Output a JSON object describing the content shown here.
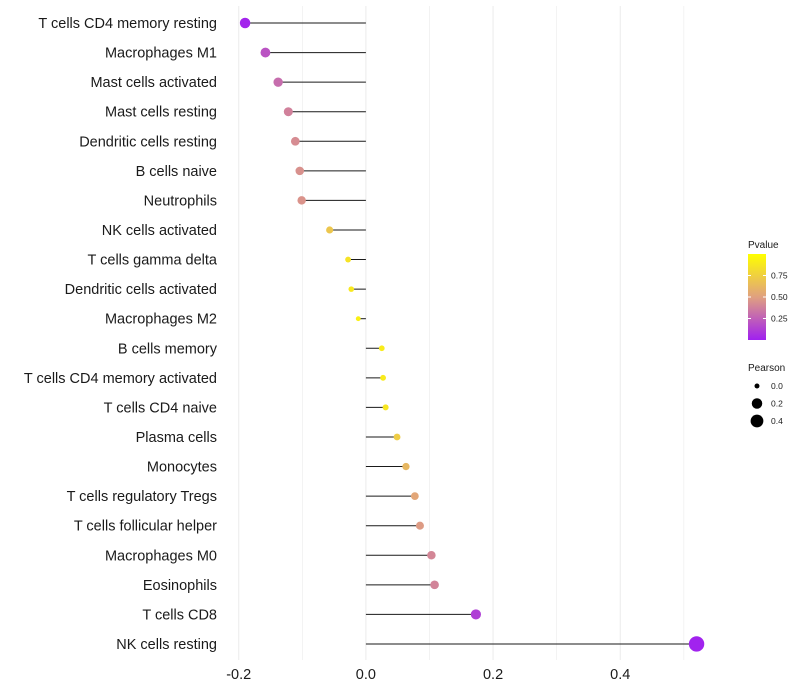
{
  "chart_data": {
    "type": "lollipop",
    "categories": [
      "T cells CD4 memory resting",
      "Macrophages M1",
      "Mast cells activated",
      "Mast cells resting",
      "Dendritic cells resting",
      "B cells naive",
      "Neutrophils",
      "NK cells activated",
      "T cells gamma delta",
      "Dendritic cells activated",
      "Macrophages M2",
      "B cells memory",
      "T cells CD4 memory activated",
      "T cells CD4 naive",
      "Plasma cells",
      "Monocytes",
      "T cells regulatory  Tregs",
      "T cells follicular helper",
      "Macrophages M0",
      "Eosinophils",
      "T cells CD8",
      "NK cells resting"
    ],
    "correlation": [
      -0.19,
      -0.158,
      -0.138,
      -0.122,
      -0.111,
      -0.104,
      -0.101,
      -0.057,
      -0.028,
      -0.023,
      -0.012,
      0.025,
      0.027,
      0.031,
      0.049,
      0.063,
      0.077,
      0.085,
      0.103,
      0.108,
      0.173,
      0.52
    ],
    "pvalue": [
      0.02,
      0.2,
      0.3,
      0.38,
      0.42,
      0.44,
      0.45,
      0.7,
      0.85,
      0.88,
      0.92,
      0.9,
      0.89,
      0.87,
      0.73,
      0.62,
      0.53,
      0.48,
      0.4,
      0.39,
      0.12,
      0.01
    ],
    "pearson_size": [
      0.19,
      0.158,
      0.138,
      0.122,
      0.111,
      0.104,
      0.101,
      0.057,
      0.028,
      0.023,
      0.012,
      0.025,
      0.027,
      0.031,
      0.049,
      0.063,
      0.077,
      0.085,
      0.103,
      0.108,
      0.173,
      0.52
    ],
    "xlim": [
      -0.22,
      0.56
    ],
    "x_ticks": [
      -0.2,
      0.0,
      0.2,
      0.4
    ],
    "x_tick_labels": [
      "-0.2",
      "0.0",
      "0.2",
      "0.4"
    ],
    "xlabel": "",
    "ylabel": "",
    "grid": true,
    "legend_pvalue": {
      "title": "Pvalue",
      "ticks": [
        0.75,
        0.5,
        0.25
      ],
      "tick_labels": [
        "0.75",
        "0.50",
        "0.25"
      ],
      "range": [
        0.0,
        1.0
      ],
      "color_low": "#a020f0",
      "color_mid": "#e0a080",
      "color_high": "#ffff00"
    },
    "legend_pearson": {
      "title": "Pearson",
      "values": [
        0.0,
        0.2,
        0.4
      ],
      "labels": [
        "0.0",
        "0.2",
        "0.4"
      ]
    },
    "colors": {
      "stem": "#1a1a1a",
      "grid": "#ebebeb",
      "background": "#ffffff"
    }
  }
}
